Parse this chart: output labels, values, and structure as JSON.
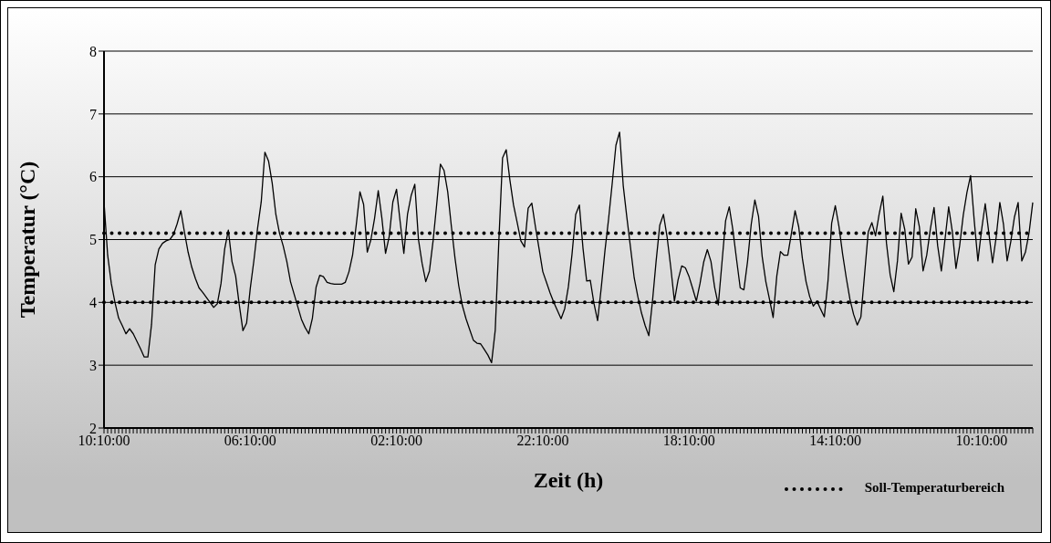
{
  "chart_data": {
    "type": "line",
    "xlabel": "Zeit (h)",
    "ylabel": "Temperatur (°C)",
    "categories": [
      "10:10:00",
      null,
      null,
      null,
      null,
      null,
      null,
      null,
      null,
      null,
      null,
      null,
      null,
      null,
      null,
      null,
      null,
      null,
      null,
      null,
      null,
      null,
      null,
      null,
      null,
      null,
      null,
      null,
      null,
      null,
      null,
      null,
      null,
      null,
      null,
      null,
      null,
      null,
      null,
      null,
      "06:10:00",
      null,
      null,
      null,
      null,
      null,
      null,
      null,
      null,
      null,
      null,
      null,
      null,
      null,
      null,
      null,
      null,
      null,
      null,
      null,
      null,
      null,
      null,
      null,
      null,
      null,
      null,
      null,
      null,
      null,
      null,
      null,
      null,
      null,
      null,
      null,
      null,
      null,
      null,
      null,
      "02:10:00",
      null,
      null,
      null,
      null,
      null,
      null,
      null,
      null,
      null,
      null,
      null,
      null,
      null,
      null,
      null,
      null,
      null,
      null,
      null,
      null,
      null,
      null,
      null,
      null,
      null,
      null,
      null,
      null,
      null,
      null,
      null,
      null,
      null,
      null,
      null,
      null,
      null,
      null,
      null,
      "22:10:00",
      null,
      null,
      null,
      null,
      null,
      null,
      null,
      null,
      null,
      null,
      null,
      null,
      null,
      null,
      null,
      null,
      null,
      null,
      null,
      null,
      null,
      null,
      null,
      null,
      null,
      null,
      null,
      null,
      null,
      null,
      null,
      null,
      null,
      null,
      null,
      null,
      null,
      null,
      null,
      "18:10:00",
      null,
      null,
      null,
      null,
      null,
      null,
      null,
      null,
      null,
      null,
      null,
      null,
      null,
      null,
      null,
      null,
      null,
      null,
      null,
      null,
      null,
      null,
      null,
      null,
      null,
      null,
      null,
      null,
      null,
      null,
      null,
      null,
      null,
      null,
      null,
      null,
      null,
      null,
      null,
      "14:10:00",
      null,
      null,
      null,
      null,
      null,
      null,
      null,
      null,
      null,
      null,
      null,
      null,
      null,
      null,
      null,
      null,
      null,
      null,
      null,
      null,
      null,
      null,
      null,
      null,
      null,
      null,
      null,
      null,
      null,
      null,
      null,
      null,
      null,
      null,
      null,
      null,
      null,
      null,
      null,
      "10:10:00",
      null,
      null,
      null,
      null,
      null,
      null,
      null,
      null,
      null,
      null,
      null,
      null,
      null,
      null
    ],
    "ylim": [
      2,
      8
    ],
    "yticks": [
      2,
      3,
      4,
      5,
      6,
      7,
      8
    ],
    "grid": "y",
    "marker": "none",
    "line_style": "solid",
    "legend": "bottom right",
    "ref_lines": [
      {
        "axis": "y",
        "value": 5.1,
        "label": "Soll-Temperaturbereich",
        "color": "#000000",
        "line_style": "dotted"
      },
      {
        "axis": "y",
        "value": 4.0,
        "color": "#000000",
        "line_style": "dotted"
      }
    ],
    "series": [
      {
        "color": "#000000",
        "values": [
          5.6,
          4.75,
          4.3,
          4.0,
          3.75,
          3.63,
          3.5,
          3.58,
          3.5,
          3.38,
          3.26,
          3.13,
          3.13,
          3.65,
          4.6,
          4.85,
          4.94,
          4.98,
          5.0,
          5.08,
          5.25,
          5.46,
          5.12,
          4.8,
          4.56,
          4.38,
          4.23,
          4.16,
          4.08,
          4.0,
          3.92,
          3.98,
          4.3,
          4.85,
          5.15,
          4.65,
          4.42,
          3.96,
          3.55,
          3.67,
          4.22,
          4.67,
          5.18,
          5.6,
          6.39,
          6.25,
          5.9,
          5.4,
          5.1,
          4.9,
          4.65,
          4.33,
          4.13,
          3.93,
          3.73,
          3.6,
          3.5,
          3.75,
          4.24,
          4.43,
          4.41,
          4.32,
          4.3,
          4.29,
          4.29,
          4.29,
          4.32,
          4.49,
          4.76,
          5.24,
          5.76,
          5.56,
          4.8,
          5.0,
          5.34,
          5.78,
          5.34,
          4.78,
          5.05,
          5.6,
          5.8,
          5.28,
          4.78,
          5.4,
          5.7,
          5.88,
          5.0,
          4.62,
          4.33,
          4.5,
          4.98,
          5.57,
          6.2,
          6.1,
          5.76,
          5.21,
          4.7,
          4.27,
          3.95,
          3.74,
          3.57,
          3.4,
          3.35,
          3.34,
          3.25,
          3.16,
          3.04,
          3.56,
          5.0,
          6.3,
          6.43,
          5.95,
          5.55,
          5.27,
          4.98,
          4.88,
          5.5,
          5.58,
          5.2,
          4.85,
          4.49,
          4.32,
          4.15,
          4.0,
          3.87,
          3.74,
          3.9,
          4.25,
          4.77,
          5.4,
          5.55,
          4.86,
          4.34,
          4.35,
          3.98,
          3.71,
          4.24,
          4.82,
          5.33,
          5.9,
          6.5,
          6.71,
          5.86,
          5.35,
          4.87,
          4.39,
          4.09,
          3.83,
          3.63,
          3.47,
          4.02,
          4.66,
          5.23,
          5.4,
          5.04,
          4.56,
          4.02,
          4.36,
          4.58,
          4.55,
          4.41,
          4.22,
          4.02,
          4.3,
          4.64,
          4.84,
          4.65,
          4.24,
          3.96,
          4.63,
          5.3,
          5.52,
          5.15,
          4.68,
          4.23,
          4.2,
          4.65,
          5.24,
          5.63,
          5.37,
          4.73,
          4.33,
          4.05,
          3.76,
          4.42,
          4.81,
          4.75,
          4.75,
          5.1,
          5.46,
          5.2,
          4.7,
          4.33,
          4.09,
          3.94,
          4.02,
          3.89,
          3.77,
          4.34,
          5.26,
          5.54,
          5.21,
          4.77,
          4.39,
          4.05,
          3.81,
          3.64,
          3.77,
          4.44,
          5.12,
          5.27,
          5.06,
          5.41,
          5.69,
          4.94,
          4.44,
          4.17,
          4.66,
          5.42,
          5.16,
          4.61,
          4.72,
          5.49,
          5.2,
          4.5,
          4.75,
          5.17,
          5.51,
          4.9,
          4.5,
          5.0,
          5.52,
          5.13,
          4.54,
          4.9,
          5.39,
          5.75,
          6.02,
          5.3,
          4.66,
          5.15,
          5.57,
          5.1,
          4.63,
          5.04,
          5.59,
          5.24,
          4.66,
          4.97,
          5.36,
          5.59,
          4.66,
          4.8,
          5.11,
          5.59
        ]
      }
    ]
  }
}
